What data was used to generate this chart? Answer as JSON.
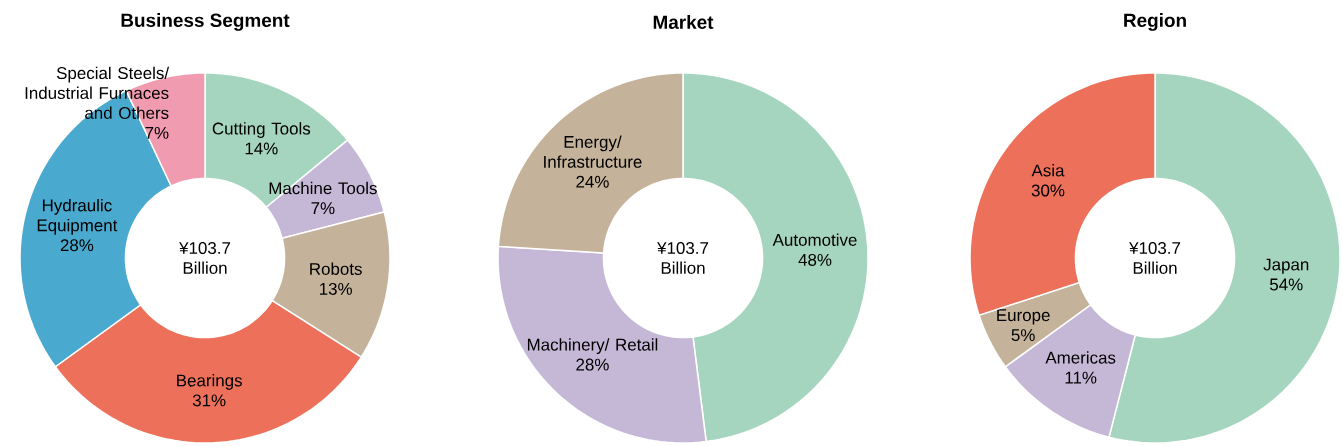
{
  "chart_data": [
    {
      "type": "donut",
      "title": "Business Segment",
      "categories": [
        "Cutting Tools",
        "Machine Tools",
        "Robots",
        "Bearings",
        "Hydraulic Equipment",
        "Special Steels/ Industrial Furnaces and Others"
      ],
      "values": [
        14,
        7,
        13,
        31,
        28,
        7
      ],
      "value_labels": [
        "14%",
        "7%",
        "13%",
        "31%",
        "28%",
        "7%"
      ],
      "colors": [
        "#a5d5bf",
        "#c5b8d6",
        "#c4b39a",
        "#ec705a",
        "#4aa9ce",
        "#f19bb0"
      ],
      "annotations": [
        "¥103.7 Billion"
      ]
    },
    {
      "type": "donut",
      "title": "Market",
      "categories": [
        "Automotive",
        "Machinery/ Retail",
        "Energy/ Infrastructure"
      ],
      "values": [
        48,
        28,
        24
      ],
      "value_labels": [
        "48%",
        "28%",
        "24%"
      ],
      "colors": [
        "#a5d5bf",
        "#c5b8d6",
        "#c4b39a"
      ],
      "annotations": [
        "¥103.7 Billion"
      ]
    },
    {
      "type": "donut",
      "title": "Region",
      "categories": [
        "Japan",
        "Americas",
        "Europe",
        "Asia"
      ],
      "values": [
        54,
        11,
        5,
        30
      ],
      "value_labels": [
        "54%",
        "11%",
        "5%",
        "30%"
      ],
      "colors": [
        "#a5d5bf",
        "#c5b8d6",
        "#c4b39a",
        "#ec705a"
      ],
      "annotations": [
        "¥103.7 Billion"
      ]
    }
  ]
}
